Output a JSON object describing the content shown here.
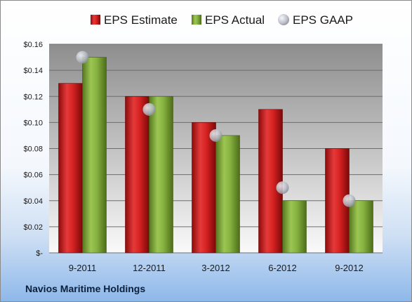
{
  "company": "Navios Maritime Holdings",
  "chart_data": {
    "type": "bar",
    "categories": [
      "9-2011",
      "12-2011",
      "3-2012",
      "6-2012",
      "9-2012"
    ],
    "series": [
      {
        "name": "EPS Estimate",
        "values": [
          0.13,
          0.12,
          0.1,
          0.11,
          0.08
        ],
        "color": "#cc2020"
      },
      {
        "name": "EPS Actual",
        "values": [
          0.15,
          0.12,
          0.09,
          0.04,
          0.04
        ],
        "color": "#7faa3a"
      }
    ],
    "markers": {
      "name": "EPS GAAP",
      "values": [
        0.15,
        0.11,
        0.09,
        0.05,
        0.04
      ],
      "color": "#b8bcc6"
    },
    "ylim": [
      0,
      0.16
    ],
    "yticks": [
      0,
      0.02,
      0.04,
      0.06,
      0.08,
      0.1,
      0.12,
      0.14,
      0.16
    ],
    "ytick_labels": [
      "$-",
      "$0.02",
      "$0.04",
      "$0.06",
      "$0.08",
      "$0.10",
      "$0.12",
      "$0.14",
      "$0.16"
    ],
    "grid": true,
    "legend": "top"
  }
}
